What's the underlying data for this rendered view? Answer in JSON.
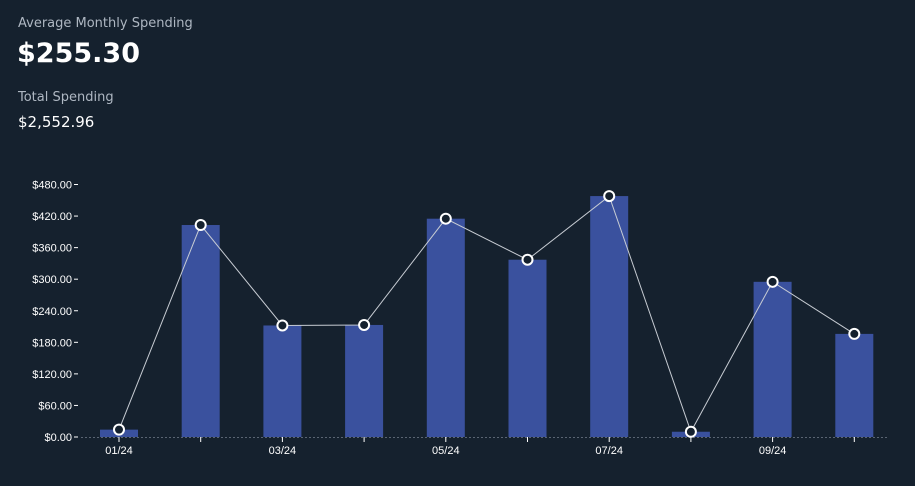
{
  "summary": {
    "average_label": "Average Monthly Spending",
    "average_value": "$255.30",
    "total_label": "Total Spending",
    "total_value": "$2,552.96"
  },
  "colors": {
    "background": "#15212e",
    "bar": "#3a519e",
    "line": "#c7ccd3",
    "marker_fill": "#15212e",
    "marker_stroke": "#ffffff",
    "text": "#ffffff",
    "muted_text": "#aeb7c2"
  },
  "chart_data": {
    "type": "bar",
    "x": [
      "01/24",
      "02/24",
      "03/24",
      "04/24",
      "05/24",
      "06/24",
      "07/24",
      "08/24",
      "09/24",
      "10/24"
    ],
    "x_tick_labels": [
      "01/24",
      "",
      "03/24",
      "",
      "05/24",
      "",
      "07/24",
      "",
      "09/24",
      ""
    ],
    "series": [
      {
        "type": "bar",
        "values": [
          14,
          403,
          212,
          213,
          415,
          337,
          458,
          10,
          295,
          196
        ]
      },
      {
        "type": "line",
        "markers": true,
        "values": [
          14,
          403,
          212,
          213,
          415,
          337,
          458,
          10,
          295,
          196
        ]
      }
    ],
    "y_ticks": [
      "$0.00",
      "$60.00",
      "$120.00",
      "$180.00",
      "$240.00",
      "$300.00",
      "$360.00",
      "$420.00",
      "$480.00"
    ],
    "ylim": [
      0,
      480
    ],
    "grid": false,
    "legend": "none",
    "title": "",
    "xlabel": "",
    "ylabel": ""
  }
}
